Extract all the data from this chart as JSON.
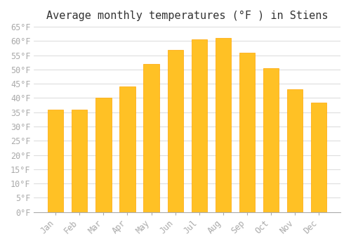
{
  "title": "Average monthly temperatures (°F ) in Stiens",
  "categories": [
    "Jan",
    "Feb",
    "Mar",
    "Apr",
    "May",
    "Jun",
    "Jul",
    "Aug",
    "Sep",
    "Oct",
    "Nov",
    "Dec"
  ],
  "values": [
    36,
    36,
    40,
    44,
    52,
    57,
    60.5,
    61,
    56,
    50.5,
    43,
    38.5
  ],
  "bar_color_face": "#FFC125",
  "bar_color_edge": "#FFA500",
  "background_color": "#FFFFFF",
  "grid_color": "#CCCCCC",
  "ylim": [
    0,
    65
  ],
  "yticks": [
    0,
    5,
    10,
    15,
    20,
    25,
    30,
    35,
    40,
    45,
    50,
    55,
    60,
    65
  ],
  "title_fontsize": 11,
  "tick_fontsize": 8.5,
  "tick_color": "#AAAAAA",
  "tick_font": "monospace"
}
